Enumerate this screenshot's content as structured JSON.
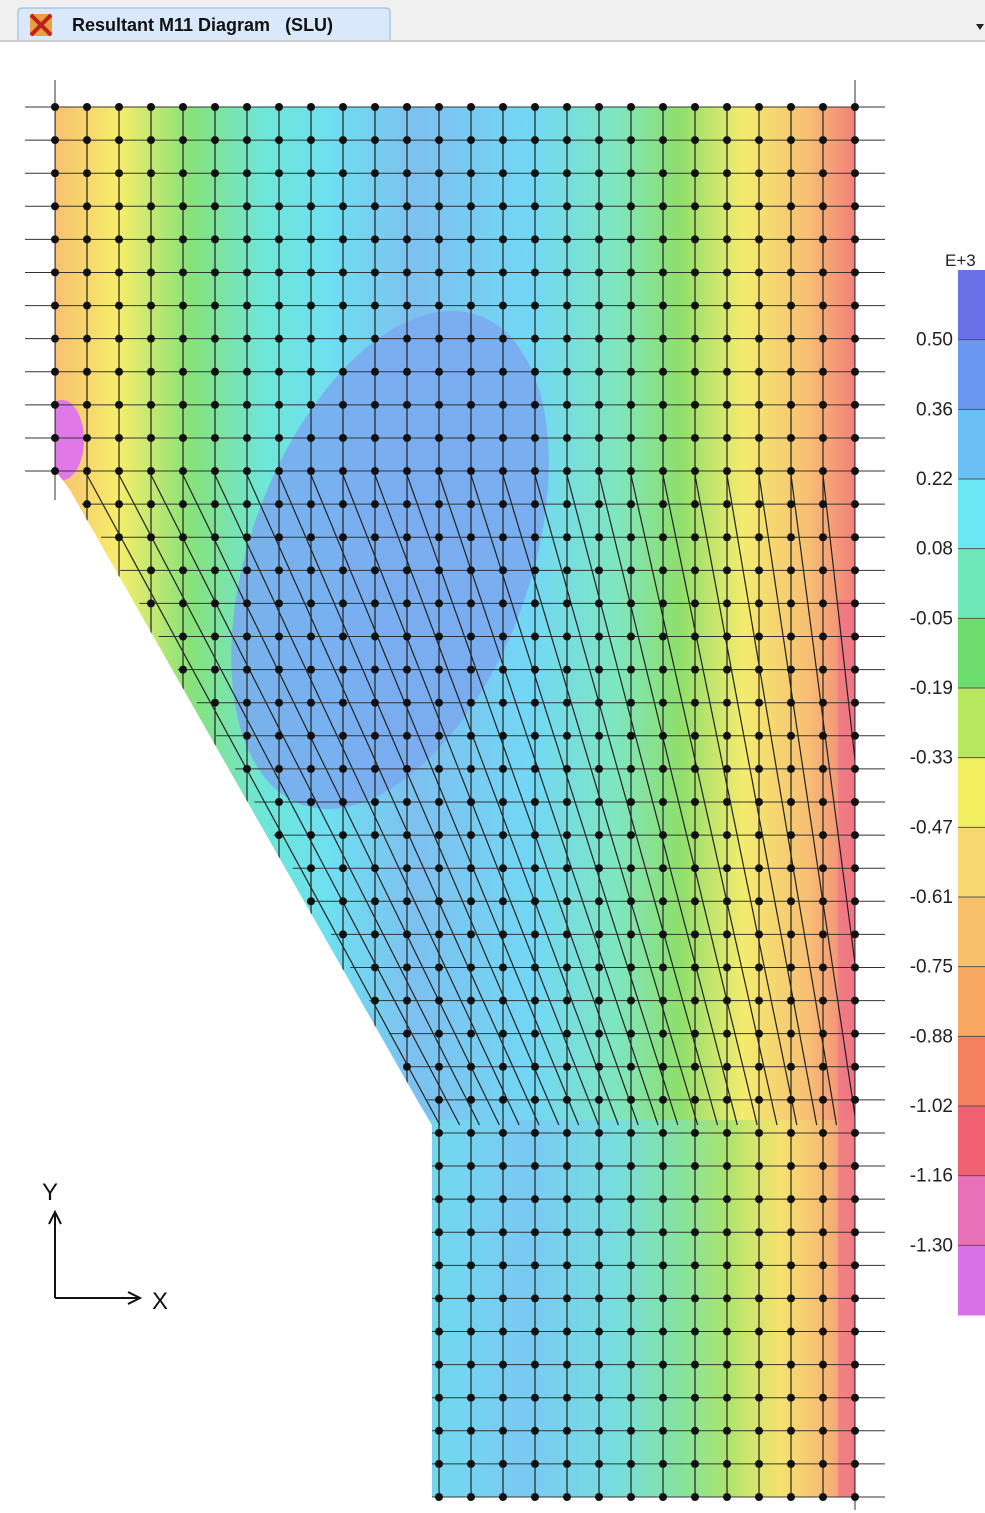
{
  "tab": {
    "title": "Resultant M11 Diagram   (SLU)"
  },
  "legend": {
    "exponent": "E+3",
    "labels": [
      "0.50",
      "0.36",
      "0.22",
      "0.08",
      "-0.05",
      "-0.19",
      "-0.33",
      "-0.47",
      "-0.61",
      "-0.75",
      "-0.88",
      "-1.02",
      "-1.16",
      "-1.30"
    ]
  },
  "axes": {
    "y": "Y",
    "x": "X"
  }
}
